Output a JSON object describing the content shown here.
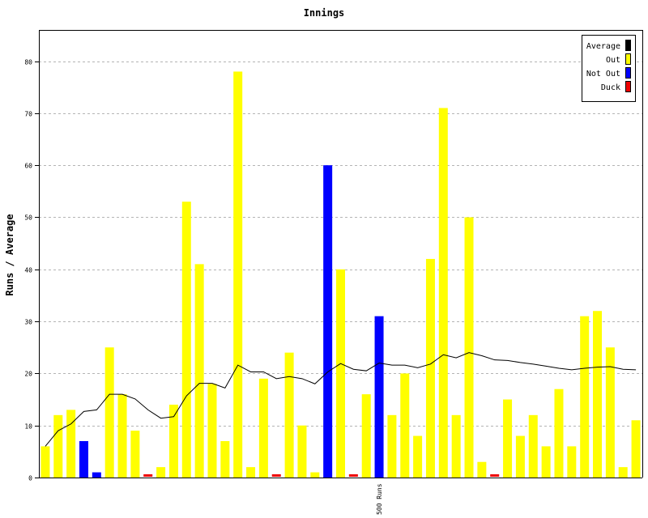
{
  "chart_data": {
    "type": "bar",
    "title": "Innings",
    "xlabel": "",
    "ylabel": "Runs / Average",
    "ylim": [
      0,
      86
    ],
    "yticks": [
      0,
      10,
      20,
      30,
      40,
      50,
      60,
      70,
      80
    ],
    "grid": true,
    "legend_position": "top-right",
    "legend": [
      {
        "label": "Average",
        "color": "#000000"
      },
      {
        "label": "Out",
        "color": "#ffff00"
      },
      {
        "label": "Not Out",
        "color": "#0000ff"
      },
      {
        "label": "Duck",
        "color": "#ee0000"
      }
    ],
    "x_annotations": [
      {
        "index": 26,
        "label": "500 Runs"
      }
    ],
    "innings": [
      {
        "runs": 6,
        "status": "out"
      },
      {
        "runs": 12,
        "status": "out"
      },
      {
        "runs": 13,
        "status": "out"
      },
      {
        "runs": 7,
        "status": "notout"
      },
      {
        "runs": 1,
        "status": "notout"
      },
      {
        "runs": 25,
        "status": "out"
      },
      {
        "runs": 16,
        "status": "out"
      },
      {
        "runs": 9,
        "status": "out"
      },
      {
        "runs": 0,
        "status": "duck"
      },
      {
        "runs": 2,
        "status": "out"
      },
      {
        "runs": 14,
        "status": "out"
      },
      {
        "runs": 53,
        "status": "out"
      },
      {
        "runs": 41,
        "status": "out"
      },
      {
        "runs": 18,
        "status": "out"
      },
      {
        "runs": 7,
        "status": "out"
      },
      {
        "runs": 78,
        "status": "out"
      },
      {
        "runs": 2,
        "status": "out"
      },
      {
        "runs": 19,
        "status": "out"
      },
      {
        "runs": 0,
        "status": "duck"
      },
      {
        "runs": 24,
        "status": "out"
      },
      {
        "runs": 10,
        "status": "out"
      },
      {
        "runs": 1,
        "status": "out"
      },
      {
        "runs": 60,
        "status": "notout"
      },
      {
        "runs": 40,
        "status": "out"
      },
      {
        "runs": 0,
        "status": "duck"
      },
      {
        "runs": 16,
        "status": "out"
      },
      {
        "runs": 31,
        "status": "notout"
      },
      {
        "runs": 12,
        "status": "out"
      },
      {
        "runs": 20,
        "status": "out"
      },
      {
        "runs": 8,
        "status": "out"
      },
      {
        "runs": 42,
        "status": "out"
      },
      {
        "runs": 71,
        "status": "out"
      },
      {
        "runs": 12,
        "status": "out"
      },
      {
        "runs": 50,
        "status": "out"
      },
      {
        "runs": 3,
        "status": "out"
      },
      {
        "runs": 0,
        "status": "duck"
      },
      {
        "runs": 15,
        "status": "out"
      },
      {
        "runs": 8,
        "status": "out"
      },
      {
        "runs": 12,
        "status": "out"
      },
      {
        "runs": 6,
        "status": "out"
      },
      {
        "runs": 17,
        "status": "out"
      },
      {
        "runs": 6,
        "status": "out"
      },
      {
        "runs": 31,
        "status": "out"
      },
      {
        "runs": 32,
        "status": "out"
      },
      {
        "runs": 25,
        "status": "out"
      },
      {
        "runs": 2,
        "status": "out"
      },
      {
        "runs": 11,
        "status": "out"
      }
    ],
    "average": [
      6,
      9,
      10.3,
      12.7,
      13,
      16,
      16,
      15.1,
      13,
      11.4,
      11.7,
      15.7,
      18.1,
      18.1,
      17.2,
      21.6,
      20.3,
      20.3,
      19,
      19.4,
      19,
      18,
      20.3,
      21.9,
      20.8,
      20.5,
      22,
      21.6,
      21.6,
      21.1,
      21.8,
      23.6,
      23,
      24,
      23.4,
      22.6,
      22.5,
      22.1,
      21.8,
      21.4,
      21,
      20.7,
      21,
      21.2,
      21.3,
      20.8,
      20.7
    ]
  }
}
